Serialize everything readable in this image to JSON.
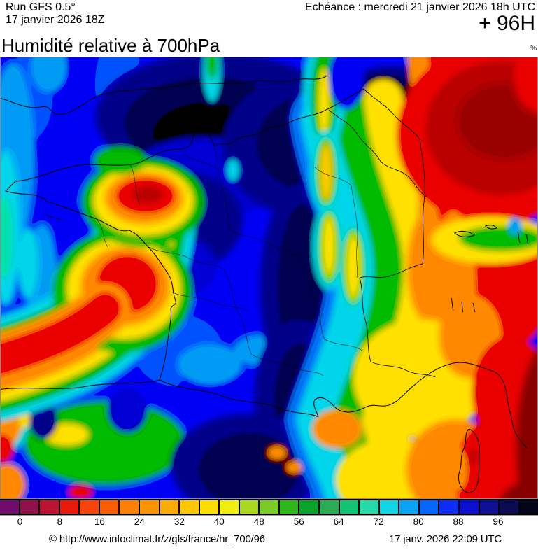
{
  "header": {
    "model_run": "Run GFS 0.5°",
    "run_datetime": "17 janvier 2026 18Z",
    "valid_label": "Echéance : mercredi 21 janvier 2026 18h UTC",
    "lead_time": "+ 96H"
  },
  "title": {
    "text": "Humidité relative à 700hPa",
    "unit": "%"
  },
  "colorbar": {
    "unit": "%",
    "tick_labels": [
      "0",
      "8",
      "16",
      "24",
      "32",
      "40",
      "48",
      "56",
      "64",
      "72",
      "80",
      "88",
      "96"
    ],
    "cell_colors": [
      "#700c6b",
      "#92114b",
      "#bb1332",
      "#e81a0e",
      "#f6420b",
      "#fa5c05",
      "#fb7e07",
      "#fb9303",
      "#fcab04",
      "#fdc705",
      "#fdde03",
      "#eeee11",
      "#aad81f",
      "#7bcb27",
      "#2eb71a",
      "#0aa32c",
      "#2cab55",
      "#12c373",
      "#25d9a9",
      "#12d4e5",
      "#0aa2f2",
      "#0566fb",
      "#0d2cf4",
      "#0b10cf",
      "#0e1094",
      "#0a0b52",
      "#040418"
    ]
  },
  "map": {
    "kind": "filled contour field of relative humidity (%) at 700 hPa over France and nearby areas",
    "wet_regions": "large very humid (88-100%, dark navy) mass over central and northern France extending to the Channel",
    "dry_regions": "very dry air (0-16%, dark red) over the east (Alps/Germany/Italy) and far right edge, a dry red tongue over Brittany and the near Atlantic to the south-west",
    "transition": "vertical rainbow gradient band (cyan-green-yellow-orange) across eastern France; yellow-orange over the Mediterranean and Corsica",
    "geography": [
      "southern England coastline",
      "French coastline",
      "Corsica",
      "Spanish coast and Pyrenees",
      "Mediterranean/Ligurian coast",
      "Alpine lakes",
      "department and national borders"
    ]
  },
  "footer": {
    "source_url": "© http://www.infoclimat.fr/z/gfs/france/hr_700/96",
    "generated": "17 janv. 2026 22:09 UTC"
  }
}
